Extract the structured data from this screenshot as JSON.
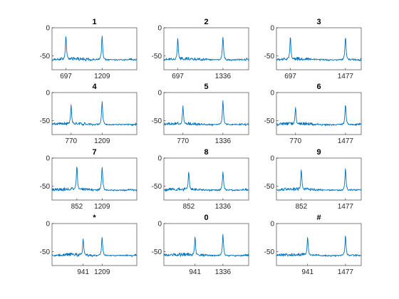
{
  "chart_data": {
    "type": "line",
    "layout": {
      "rows": 4,
      "cols": 3
    },
    "line_color": "#0072BD",
    "x_range_hz": [
      500,
      1700
    ],
    "y_range": [
      -75,
      0
    ],
    "yticks": [
      0,
      -50
    ],
    "panels": [
      {
        "title": "1",
        "freqs": [
          697,
          1209
        ],
        "xtick_labels": [
          "697",
          "1209"
        ],
        "peak_levels": [
          -15,
          -15
        ]
      },
      {
        "title": "2",
        "freqs": [
          697,
          1336
        ],
        "xtick_labels": [
          "697",
          "1336"
        ],
        "peak_levels": [
          -18,
          -16
        ]
      },
      {
        "title": "3",
        "freqs": [
          697,
          1477
        ],
        "xtick_labels": [
          "697",
          "1477"
        ],
        "peak_levels": [
          -16,
          -16
        ]
      },
      {
        "title": "4",
        "freqs": [
          770,
          1209
        ],
        "xtick_labels": [
          "770",
          "1209"
        ],
        "peak_levels": [
          -22,
          -17
        ]
      },
      {
        "title": "5",
        "freqs": [
          770,
          1336
        ],
        "xtick_labels": [
          "770",
          "1336"
        ],
        "peak_levels": [
          -25,
          -15
        ]
      },
      {
        "title": "6",
        "freqs": [
          770,
          1477
        ],
        "xtick_labels": [
          "770",
          "1477"
        ],
        "peak_levels": [
          -26,
          -20
        ]
      },
      {
        "title": "7",
        "freqs": [
          852,
          1209
        ],
        "xtick_labels": [
          "852",
          "1209"
        ],
        "peak_levels": [
          -13,
          -15
        ]
      },
      {
        "title": "8",
        "freqs": [
          852,
          1336
        ],
        "xtick_labels": [
          "852",
          "1336"
        ],
        "peak_levels": [
          -24,
          -24
        ]
      },
      {
        "title": "9",
        "freqs": [
          852,
          1477
        ],
        "xtick_labels": [
          "852",
          "1477"
        ],
        "peak_levels": [
          -21,
          -19
        ]
      },
      {
        "title": "*",
        "freqs": [
          941,
          1209
        ],
        "xtick_labels": [
          "941",
          "1209"
        ],
        "peak_levels": [
          -28,
          -24
        ]
      },
      {
        "title": "0",
        "freqs": [
          941,
          1336
        ],
        "xtick_labels": [
          "941",
          "1336"
        ],
        "peak_levels": [
          -24,
          -20
        ]
      },
      {
        "title": "#",
        "freqs": [
          941,
          1477
        ],
        "xtick_labels": [
          "941",
          "1477"
        ],
        "peak_levels": [
          -24,
          -22
        ]
      }
    ]
  }
}
